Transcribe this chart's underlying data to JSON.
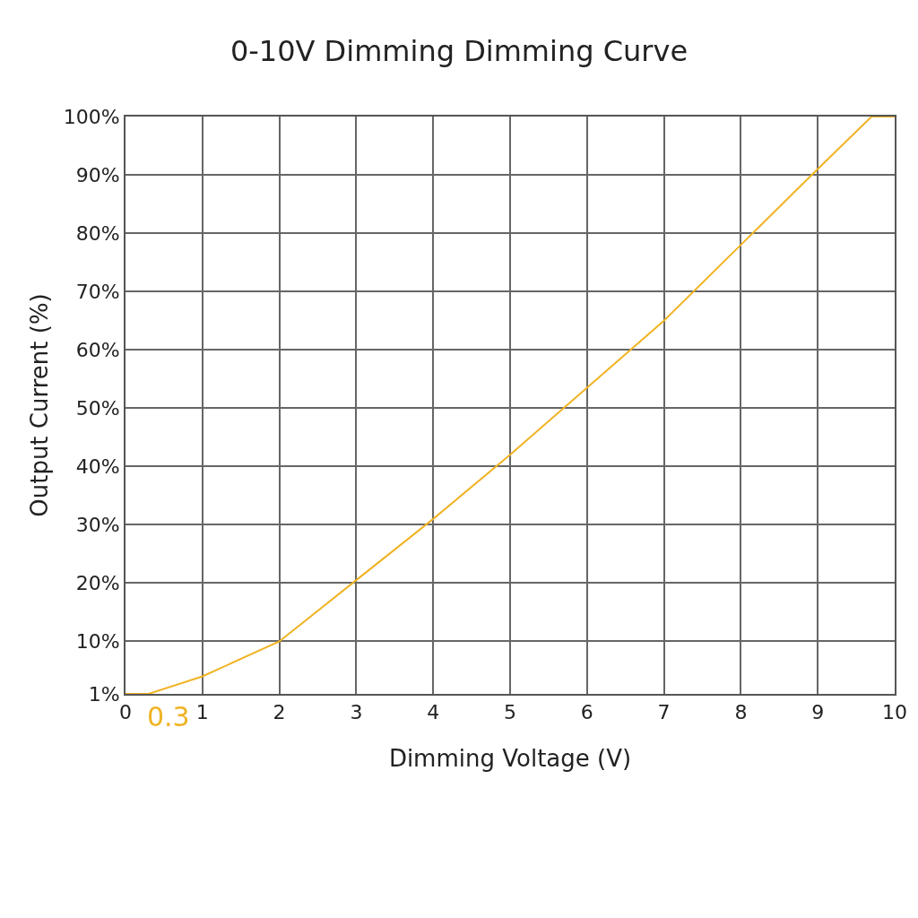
{
  "chart_data": {
    "type": "line",
    "title": "0-10V Dimming Dimming Curve",
    "xlabel": "Dimming Voltage (V)",
    "ylabel": "Output Current (%)",
    "x": [
      0,
      0.3,
      1,
      2,
      3,
      4,
      5,
      6,
      7,
      8,
      9,
      9.7,
      10
    ],
    "series": [
      {
        "color": "#f0b323",
        "values": [
          1,
          1,
          4,
          10,
          20.5,
          31,
          42,
          53.5,
          65,
          78,
          91,
          100,
          100
        ]
      }
    ],
    "xlim": [
      0,
      10
    ],
    "xticks": [
      0,
      1,
      2,
      3,
      4,
      5,
      6,
      7,
      8,
      9,
      10
    ],
    "ylim": [
      1,
      100
    ],
    "yticks": [
      {
        "value": 1,
        "label": "1%"
      },
      {
        "value": 10,
        "label": "10%"
      },
      {
        "value": 20,
        "label": "20%"
      },
      {
        "value": 30,
        "label": "30%"
      },
      {
        "value": 40,
        "label": "40%"
      },
      {
        "value": 50,
        "label": "50%"
      },
      {
        "value": 60,
        "label": "60%"
      },
      {
        "value": 70,
        "label": "70%"
      },
      {
        "value": 80,
        "label": "80%"
      },
      {
        "value": 90,
        "label": "90%"
      },
      {
        "value": 100,
        "label": "100%"
      }
    ],
    "annotations": [
      {
        "text": "0.3",
        "x": 0.3,
        "y": 1
      }
    ],
    "grid": true,
    "legend": false,
    "marker": "none",
    "line_style": "solid"
  }
}
